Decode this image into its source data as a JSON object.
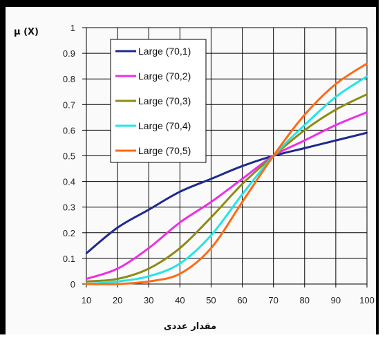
{
  "chart_data": {
    "type": "line",
    "ylabel": "μ (X)",
    "xlabel": "مقدار عددی",
    "xlim": [
      10,
      100
    ],
    "ylim": [
      0,
      1
    ],
    "xticks": [
      "10",
      "20",
      "30",
      "40",
      "50",
      "60",
      "70",
      "80",
      "90",
      "100"
    ],
    "yticks": [
      "0",
      "0.1",
      "0.2",
      "0.3",
      "0.4",
      "0.5",
      "0.6",
      "0.7",
      "0.8",
      "0.9",
      "1"
    ],
    "grid": true,
    "legend_position": "top-left",
    "series": [
      {
        "name": "Large (70,1)",
        "color": "#1f2a8c",
        "x": [
          10,
          20,
          30,
          40,
          50,
          60,
          70,
          80,
          90,
          100
        ],
        "y": [
          0.12,
          0.22,
          0.29,
          0.36,
          0.41,
          0.46,
          0.5,
          0.53,
          0.56,
          0.59
        ]
      },
      {
        "name": "Large (70,2)",
        "color": "#ee2fe6",
        "x": [
          10,
          20,
          30,
          40,
          50,
          60,
          70,
          80,
          90,
          100
        ],
        "y": [
          0.02,
          0.06,
          0.14,
          0.24,
          0.32,
          0.41,
          0.5,
          0.56,
          0.62,
          0.67
        ]
      },
      {
        "name": "Large (70,3)",
        "color": "#8c8c14",
        "x": [
          10,
          20,
          30,
          40,
          50,
          60,
          70,
          80,
          90,
          100
        ],
        "y": [
          0.01,
          0.02,
          0.06,
          0.14,
          0.26,
          0.39,
          0.5,
          0.6,
          0.68,
          0.74
        ]
      },
      {
        "name": "Large (70,4)",
        "color": "#22e6e6",
        "x": [
          10,
          20,
          30,
          40,
          50,
          60,
          70,
          80,
          90,
          100
        ],
        "y": [
          0,
          0.01,
          0.03,
          0.08,
          0.19,
          0.35,
          0.5,
          0.62,
          0.73,
          0.81
        ]
      },
      {
        "name": "Large (70,5)",
        "color": "#ff6a14",
        "x": [
          10,
          20,
          30,
          40,
          50,
          60,
          70,
          80,
          90,
          100
        ],
        "y": [
          0,
          0,
          0.01,
          0.04,
          0.14,
          0.32,
          0.5,
          0.66,
          0.78,
          0.86
        ]
      }
    ],
    "colors": {
      "background": "#fafafa",
      "grid": "#000000",
      "frame": "#000000"
    }
  }
}
